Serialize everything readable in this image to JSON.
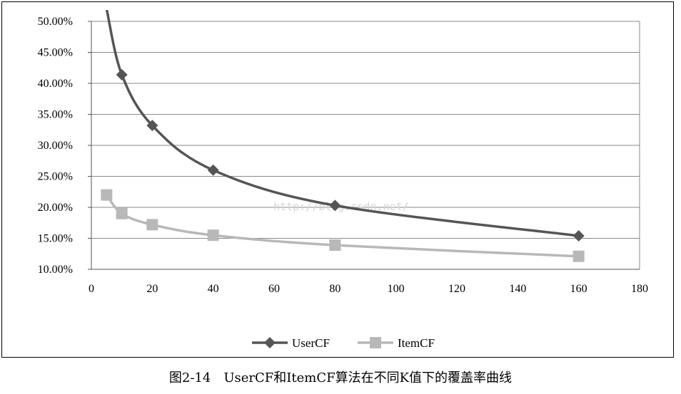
{
  "caption": "图2-14　UserCF和ItemCF算法在不同K值下的覆盖率曲线",
  "watermark": "http://blog.csdn.net/",
  "chart_data": {
    "type": "line",
    "title": "",
    "xlabel": "",
    "ylabel": "",
    "xlim": [
      0,
      180
    ],
    "ylim": [
      0.1,
      0.5
    ],
    "x_ticks": [
      0,
      20,
      40,
      60,
      80,
      100,
      120,
      140,
      160,
      180
    ],
    "y_ticks": [
      0.1,
      0.15,
      0.2,
      0.25,
      0.3,
      0.35,
      0.4,
      0.45,
      0.5
    ],
    "x_tick_labels": [
      "0",
      "20",
      "40",
      "60",
      "80",
      "100",
      "120",
      "140",
      "160",
      "180"
    ],
    "y_tick_labels": [
      "10.00%",
      "15.00%",
      "20.00%",
      "25.00%",
      "30.00%",
      "35.00%",
      "40.00%",
      "45.00%",
      "50.00%"
    ],
    "grid": "horizontal",
    "legend_position": "bottom",
    "series": [
      {
        "name": "UserCF",
        "marker": "diamond",
        "color": "#555555",
        "x": [
          5,
          10,
          20,
          40,
          80,
          160
        ],
        "y": [
          0.52,
          0.414,
          0.332,
          0.26,
          0.203,
          0.154
        ]
      },
      {
        "name": "ItemCF",
        "marker": "square",
        "color": "#b8b8b8",
        "x": [
          5,
          10,
          20,
          40,
          80,
          160
        ],
        "y": [
          0.22,
          0.19,
          0.172,
          0.155,
          0.139,
          0.121
        ]
      }
    ]
  }
}
